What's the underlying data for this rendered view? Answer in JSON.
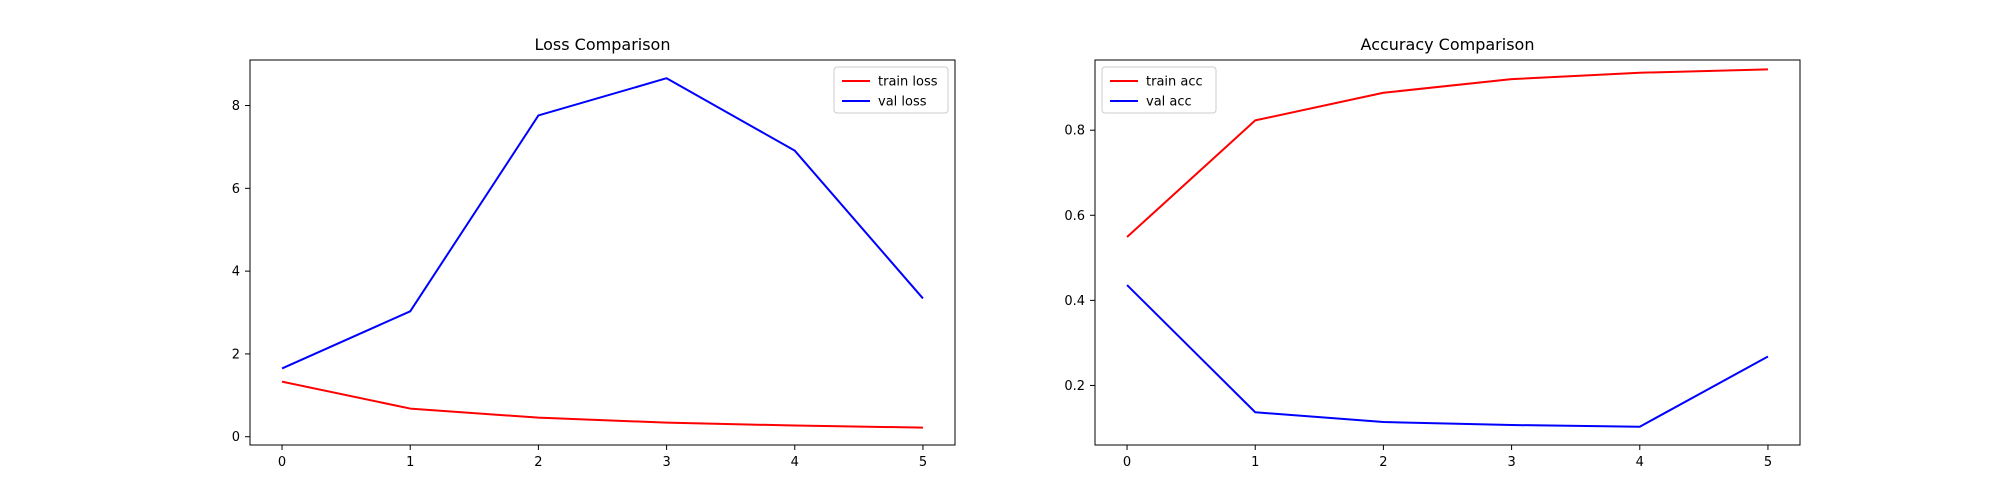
{
  "chart_data": [
    {
      "type": "line",
      "title": "Loss Comparison",
      "xlabel": "",
      "ylabel": "",
      "x": [
        0,
        1,
        2,
        3,
        4,
        5
      ],
      "xlim": [
        -0.25,
        5.25
      ],
      "ylim": [
        -0.2,
        9.1
      ],
      "xticks": [
        0,
        1,
        2,
        3,
        4,
        5
      ],
      "yticks": [
        0,
        2,
        4,
        6,
        8
      ],
      "grid": false,
      "legend_location": "upper right",
      "series": [
        {
          "name": "train loss",
          "color": "#ff0000",
          "values": [
            1.33,
            0.68,
            0.46,
            0.34,
            0.27,
            0.22
          ]
        },
        {
          "name": "val loss",
          "color": "#0000ff",
          "values": [
            1.65,
            3.03,
            7.76,
            8.66,
            6.91,
            3.34
          ]
        }
      ]
    },
    {
      "type": "line",
      "title": "Accuracy Comparison",
      "xlabel": "",
      "ylabel": "",
      "x": [
        0,
        1,
        2,
        3,
        4,
        5
      ],
      "xlim": [
        -0.25,
        5.25
      ],
      "ylim": [
        0.06,
        0.965
      ],
      "xticks": [
        0,
        1,
        2,
        3,
        4,
        5
      ],
      "yticks": [
        0.2,
        0.4,
        0.6,
        0.8
      ],
      "grid": false,
      "legend_location": "upper left",
      "series": [
        {
          "name": "train acc",
          "color": "#ff0000",
          "values": [
            0.549,
            0.823,
            0.888,
            0.92,
            0.935,
            0.943
          ]
        },
        {
          "name": "val acc",
          "color": "#0000ff",
          "values": [
            0.436,
            0.137,
            0.114,
            0.107,
            0.103,
            0.268
          ]
        }
      ]
    }
  ]
}
